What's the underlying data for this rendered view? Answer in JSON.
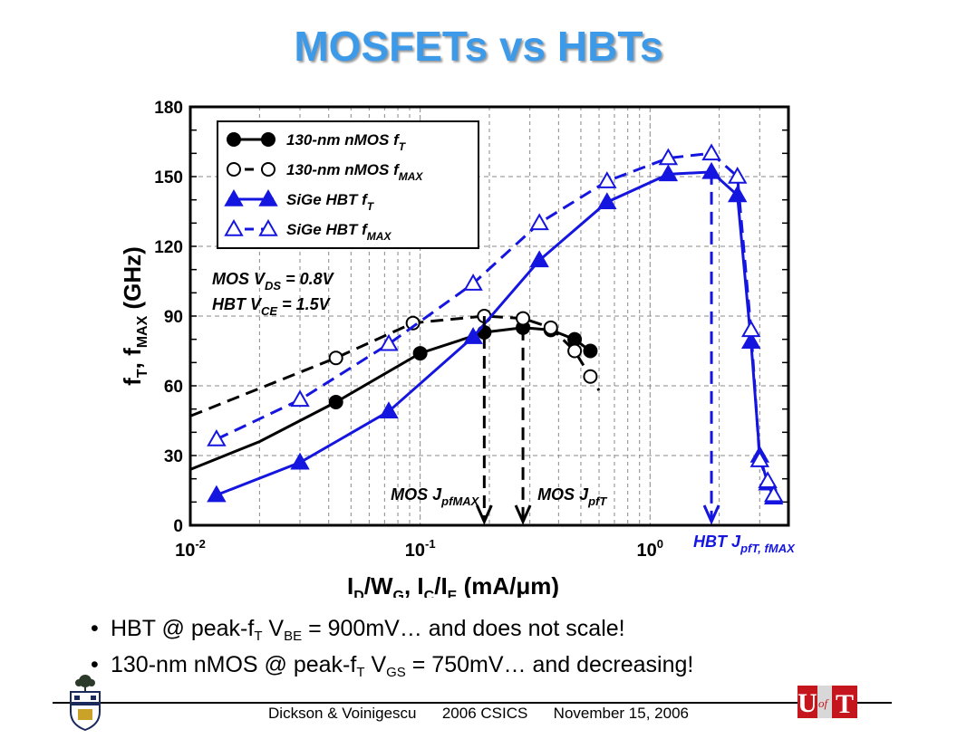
{
  "slide": {
    "title": "MOSFETs vs HBTs",
    "bullets": [
      {
        "pre": "HBT @ peak-f",
        "sub1": "T",
        "mid": " V",
        "sub2": "BE",
        "post": " = 900mV…  and does not scale!"
      },
      {
        "pre": "130-nm nMOS @ peak-f",
        "sub1": "T",
        "mid": " V",
        "sub2": "GS",
        "post": " = 750mV…  and decreasing!"
      }
    ],
    "footer": "Dickson & Voinigescu      2006 CSICS      November 15, 2006"
  },
  "colors": {
    "title": "#3d9ae8",
    "hbt": "#1515e0",
    "mos": "#000000",
    "grid": "#888888"
  },
  "chart_data": {
    "type": "line",
    "x_scale": "log",
    "xlim": [
      0.01,
      4
    ],
    "ylim": [
      0,
      180
    ],
    "yticks": [
      0,
      30,
      60,
      90,
      120,
      150,
      180
    ],
    "xtick_labels": [
      {
        "value": 0.01,
        "base": "10",
        "exp": "-2"
      },
      {
        "value": 0.1,
        "base": "10",
        "exp": "-1"
      },
      {
        "value": 1,
        "base": "10",
        "exp": "0"
      }
    ],
    "xlabel": "I_D/W_G, I_C/I_E (mA/μm)",
    "ylabel": "f_T, f_MAX (GHz)",
    "series": [
      {
        "name": "130-nm nMOS f_T",
        "color": "#000000",
        "dashed": false,
        "marker": "filled-circle",
        "x": [
          0.01,
          0.02,
          0.043,
          0.1,
          0.19,
          0.28,
          0.37,
          0.47,
          0.55
        ],
        "y": [
          24,
          36,
          53,
          74,
          83,
          85,
          84,
          80,
          75
        ],
        "marker_x": [
          0.043,
          0.1,
          0.19,
          0.28,
          0.37,
          0.47,
          0.55
        ]
      },
      {
        "name": "130-nm nMOS f_MAX",
        "color": "#000000",
        "dashed": true,
        "marker": "open-circle",
        "x": [
          0.01,
          0.043,
          0.093,
          0.19,
          0.28,
          0.37,
          0.47,
          0.55,
          0.6
        ],
        "y": [
          47,
          72,
          87,
          90,
          89,
          85,
          75,
          64,
          58
        ],
        "marker_x": [
          0.043,
          0.093,
          0.19,
          0.28,
          0.37,
          0.47,
          0.55
        ]
      },
      {
        "name": "SiGe HBT f_T",
        "color": "#1515e0",
        "dashed": false,
        "marker": "filled-triangle",
        "x": [
          0.013,
          0.03,
          0.073,
          0.17,
          0.33,
          0.65,
          1.2,
          1.85,
          2.4,
          2.75,
          3.0,
          3.25,
          3.45
        ],
        "y": [
          13,
          27,
          49,
          81,
          114,
          139,
          151,
          152,
          142,
          79,
          30,
          18,
          12
        ]
      },
      {
        "name": "SiGe HBT f_MAX",
        "color": "#1515e0",
        "dashed": true,
        "marker": "open-triangle",
        "x": [
          0.013,
          0.03,
          0.073,
          0.17,
          0.33,
          0.65,
          1.2,
          1.85,
          2.4,
          2.75,
          3.0,
          3.25,
          3.45
        ],
        "y": [
          37,
          54,
          78,
          104,
          130,
          148,
          158,
          160,
          150,
          84,
          28,
          19,
          13
        ]
      }
    ],
    "annotations": [
      {
        "line1": "MOS V",
        "sub1": "DS",
        "rest1": " = 0.8V",
        "line2": "HBT V",
        "sub2": "CE",
        "rest2": " = 1.5V"
      }
    ],
    "arrows": [
      {
        "label": "MOS J",
        "label_sub": "pfMAX",
        "x": 0.19,
        "y_from": 90,
        "color": "#000000"
      },
      {
        "label": "MOS J",
        "label_sub": "pfT",
        "x": 0.28,
        "y_from": 85,
        "color": "#000000"
      },
      {
        "label": "HBT J",
        "label_sub": "pfT, fMAX",
        "x": 1.85,
        "y_from": 152,
        "color": "#1515e0"
      }
    ]
  }
}
